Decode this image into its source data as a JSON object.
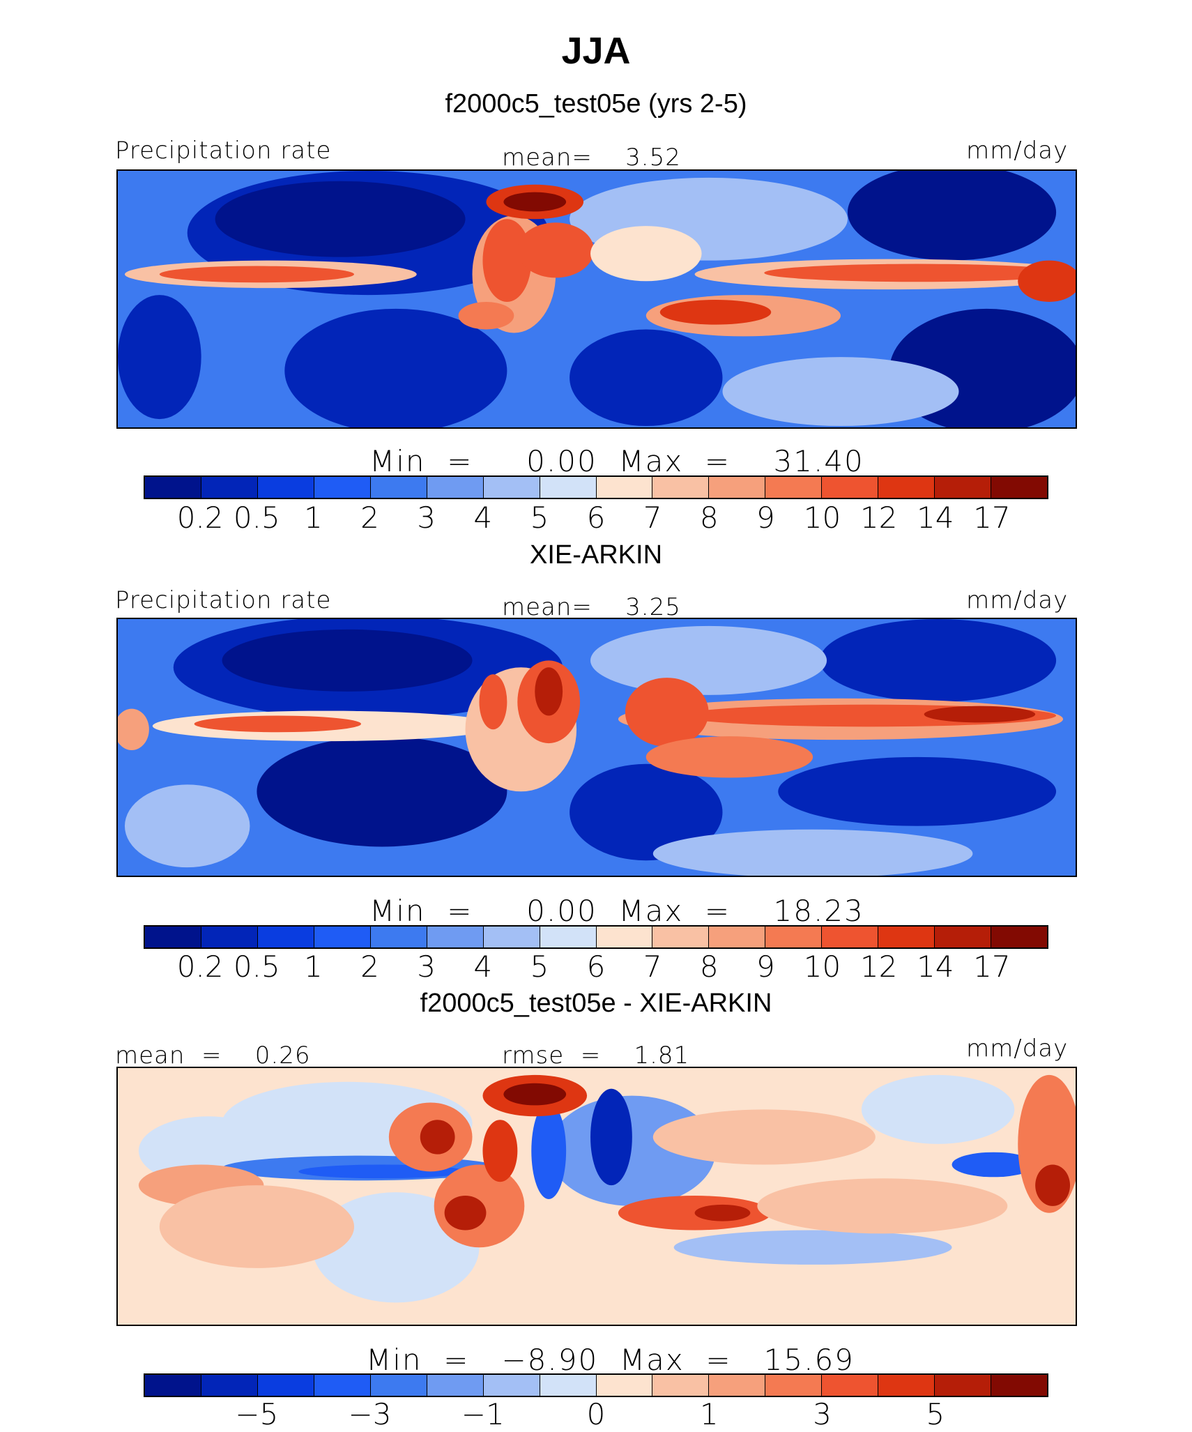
{
  "title": "JJA",
  "panels": [
    {
      "subtitle": "f2000c5_test05e (yrs 2-5)",
      "left_label": "Precipitation rate",
      "center_label": "mean=    3.52",
      "right_label": "mm/day",
      "stats": "Min  =     0.00  Max  =    31.40",
      "kind": "abs"
    },
    {
      "subtitle": "XIE-ARKIN",
      "left_label": "Precipitation rate",
      "center_label": "mean=    3.25",
      "right_label": "mm/day",
      "stats": "Min  =     0.00  Max  =    18.23",
      "kind": "abs"
    },
    {
      "subtitle": "f2000c5_test05e - XIE-ARKIN",
      "left_label": "mean  =    0.26",
      "center_label": "rmse  =    1.81",
      "right_label": "mm/day",
      "stats": "Min  =   −8.90  Max  =   15.69",
      "kind": "diff"
    }
  ],
  "colorbar_abs": {
    "colors": [
      "#00138c",
      "#0225b8",
      "#0a3de0",
      "#1f5cf5",
      "#3d7af0",
      "#6f9bf2",
      "#a3bff5",
      "#d2e2f8",
      "#fde3cf",
      "#f9c1a4",
      "#f6a07c",
      "#f47a52",
      "#ee5430",
      "#de3612",
      "#b51e08",
      "#820a02"
    ],
    "ticks": [
      "0.2",
      "0.5",
      "1",
      "2",
      "3",
      "4",
      "5",
      "6",
      "7",
      "8",
      "9",
      "10",
      "12",
      "14",
      "17"
    ]
  },
  "colorbar_diff": {
    "colors": [
      "#00138c",
      "#0225b8",
      "#0a3de0",
      "#1f5cf5",
      "#3d7af0",
      "#6f9bf2",
      "#a3bff5",
      "#d2e2f8",
      "#fde3cf",
      "#f9c1a4",
      "#f6a07c",
      "#f47a52",
      "#ee5430",
      "#de3612",
      "#b51e08",
      "#820a02"
    ],
    "ticks": [
      "−5",
      "−3",
      "−1",
      "0",
      "1",
      "3",
      "5"
    ],
    "tick_boundary_index": [
      1,
      3,
      5,
      7,
      9,
      11,
      13
    ]
  }
}
